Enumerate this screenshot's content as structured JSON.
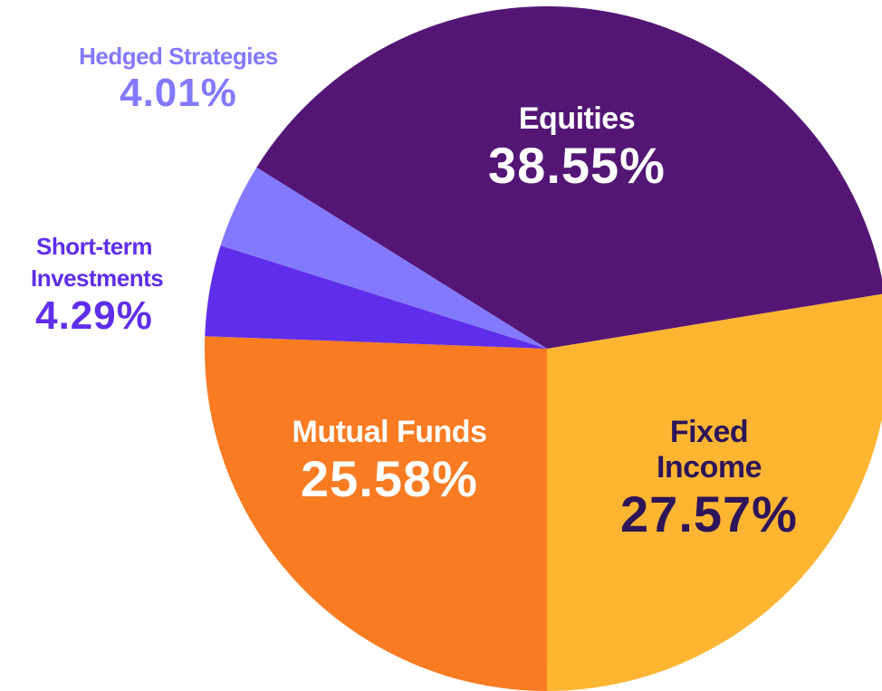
{
  "chart_data": {
    "type": "pie",
    "categories": [
      "Equities",
      "Fixed Income",
      "Mutual Funds",
      "Short-term Investments",
      "Hedged Strategies"
    ],
    "values": [
      38.55,
      27.57,
      25.58,
      4.29,
      4.01
    ],
    "value_labels": [
      "38.55%",
      "27.57%",
      "25.58%",
      "4.29%",
      "4.01%"
    ],
    "colors": [
      "#541675",
      "#fdb532",
      "#f97b22",
      "#5f2eea",
      "#8379ff"
    ]
  }
}
